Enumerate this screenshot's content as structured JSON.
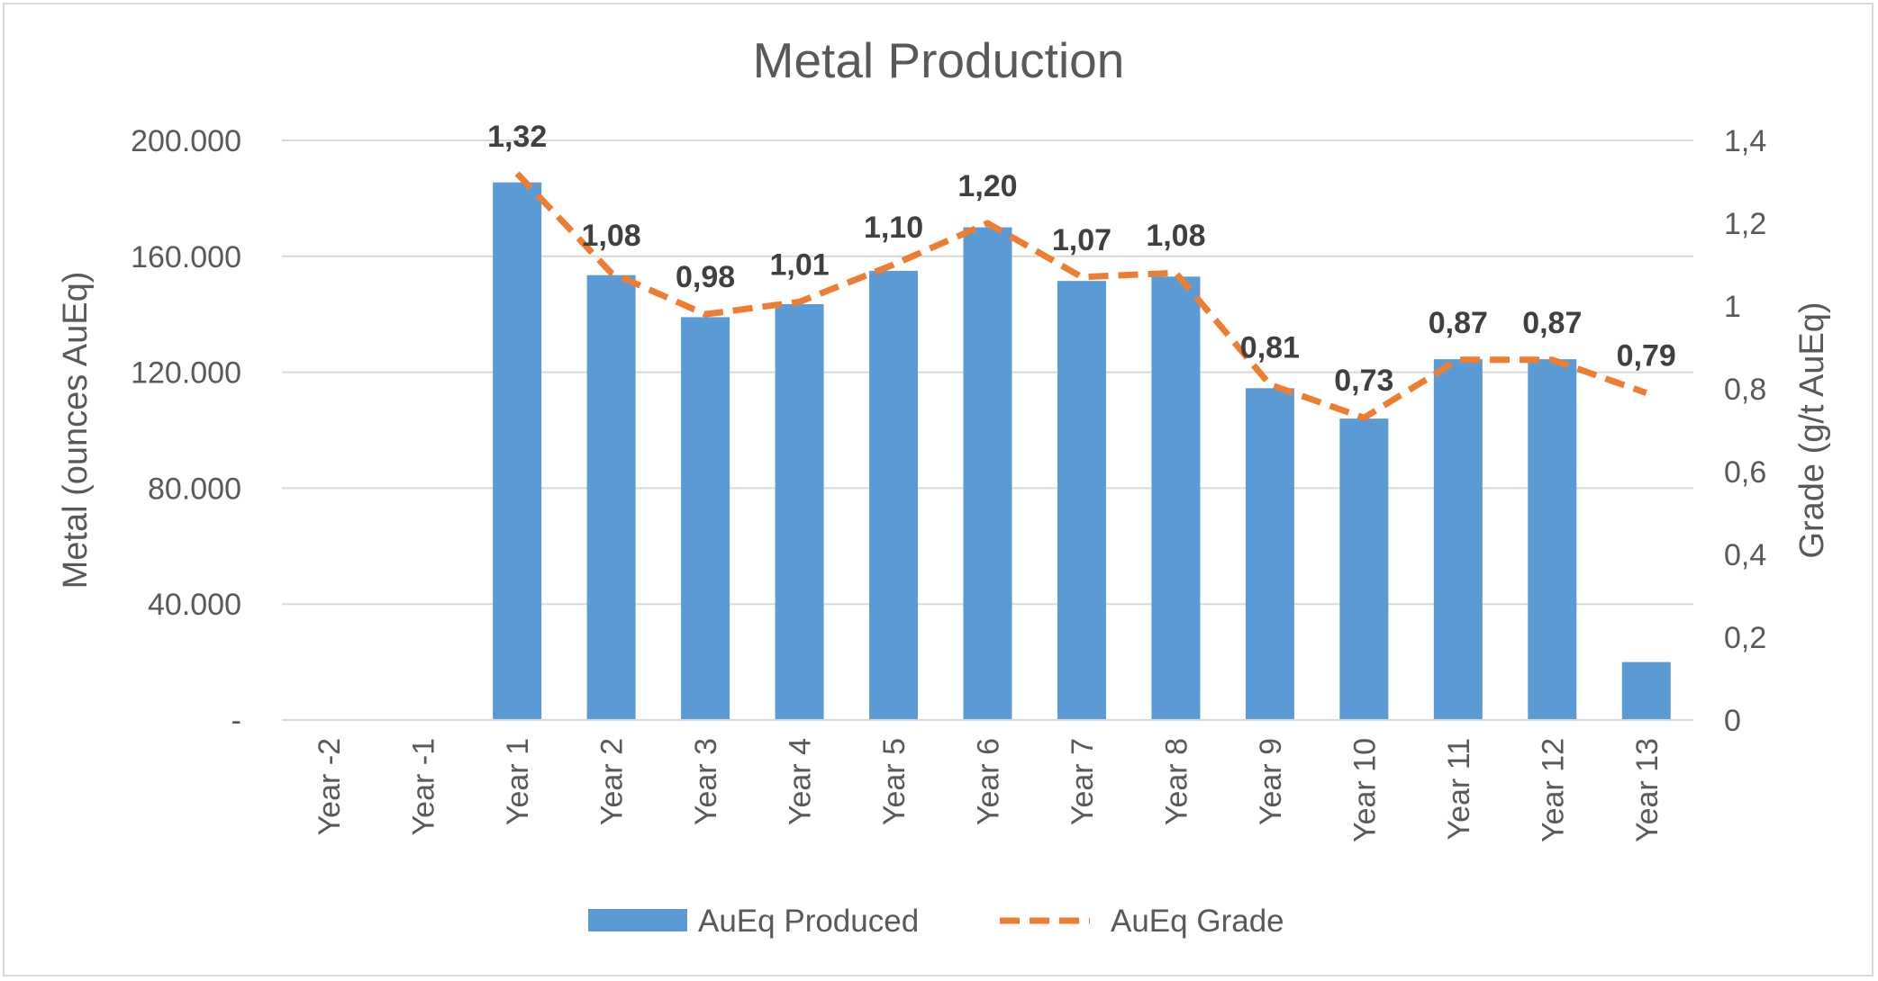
{
  "chart_data": {
    "type": "bar",
    "title": "Metal Production",
    "categories": [
      "Year -2",
      "Year -1",
      "Year 1",
      "Year 2",
      "Year 3",
      "Year 4",
      "Year 5",
      "Year 6",
      "Year 7",
      "Year 8",
      "Year 9",
      "Year 10",
      "Year 11",
      "Year 12",
      "Year 13"
    ],
    "series": [
      {
        "name": "AuEq Produced",
        "type": "bar",
        "axis": "left",
        "color": "#5b9bd5",
        "values": [
          0,
          0,
          185500,
          153500,
          139000,
          143500,
          155000,
          170000,
          151500,
          153000,
          114500,
          104000,
          124500,
          124500,
          20000
        ]
      },
      {
        "name": "AuEq Grade",
        "type": "line",
        "style": "dashed",
        "axis": "right",
        "color": "#ed7d31",
        "values": [
          null,
          null,
          1.32,
          1.08,
          0.98,
          1.01,
          1.1,
          1.2,
          1.07,
          1.08,
          0.81,
          0.73,
          0.87,
          0.87,
          0.79
        ],
        "data_labels": [
          null,
          null,
          "1,32",
          "1,08",
          "0,98",
          "1,01",
          "1,10",
          "1,20",
          "1,07",
          "1,08",
          "0,81",
          "0,73",
          "0,87",
          "0,87",
          "0,79"
        ]
      }
    ],
    "ylabel": "Metal (ounces AuEq)",
    "y2label": "Grade (g/t AuEq)",
    "ylim": [
      0,
      200000
    ],
    "y2lim": [
      0,
      1.4
    ],
    "yticks": [
      {
        "value": 0,
        "label": "-"
      },
      {
        "value": 40000,
        "label": "40.000"
      },
      {
        "value": 80000,
        "label": "80.000"
      },
      {
        "value": 120000,
        "label": "120.000"
      },
      {
        "value": 160000,
        "label": "160.000"
      },
      {
        "value": 200000,
        "label": "200.000"
      }
    ],
    "y2ticks": [
      {
        "value": 0,
        "label": "0"
      },
      {
        "value": 0.2,
        "label": "0,2"
      },
      {
        "value": 0.4,
        "label": "0,4"
      },
      {
        "value": 0.6,
        "label": "0,6"
      },
      {
        "value": 0.8,
        "label": "0,8"
      },
      {
        "value": 1.0,
        "label": "1"
      },
      {
        "value": 1.2,
        "label": "1,2"
      },
      {
        "value": 1.4,
        "label": "1,4"
      }
    ],
    "grid": true,
    "legend_position": "bottom"
  }
}
